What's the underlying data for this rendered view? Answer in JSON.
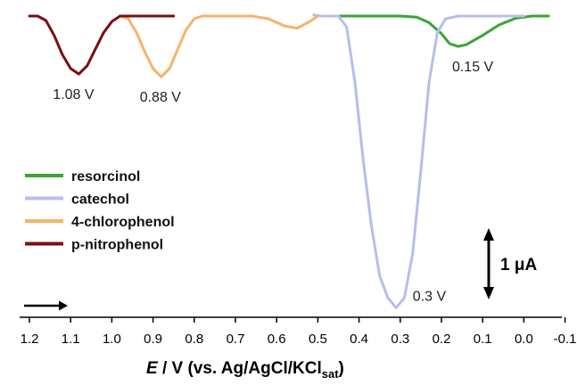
{
  "chart_data": {
    "type": "line",
    "xlabel": {
      "italic": "E",
      "main": " / V (vs. Ag/AgCl/KCl",
      "sub": "sat",
      "close": ")"
    },
    "x_reversed": true,
    "xlim": [
      1.2,
      -0.1
    ],
    "x_ticks": [
      "1.2",
      "1.1",
      "1.0",
      "0.9",
      "0.8",
      "0.7",
      "0.6",
      "0.5",
      "0.4",
      "0.3",
      "0.2",
      "0.1",
      "0.0",
      "-0.1"
    ],
    "scale_bar": {
      "value": 1,
      "unit_prefix": "1 ",
      "unit": "μA",
      "text": "1 μA"
    },
    "series": [
      {
        "name": "resorcinol",
        "color": "#3aa535",
        "points": [
          [
            0.48,
            0.0
          ],
          [
            0.3,
            0.0
          ],
          [
            0.26,
            -0.02
          ],
          [
            0.23,
            -0.12
          ],
          [
            0.2,
            -0.32
          ],
          [
            0.18,
            -0.5
          ],
          [
            0.16,
            -0.55
          ],
          [
            0.14,
            -0.52
          ],
          [
            0.1,
            -0.35
          ],
          [
            0.06,
            -0.16
          ],
          [
            0.02,
            -0.04
          ],
          [
            -0.02,
            0.0
          ],
          [
            -0.06,
            0.0
          ]
        ]
      },
      {
        "name": "catechol",
        "color": "#b8bcee",
        "points": [
          [
            0.51,
            0.02
          ],
          [
            0.49,
            0.0
          ],
          [
            0.45,
            0.0
          ],
          [
            0.43,
            -0.2
          ],
          [
            0.41,
            -1.2
          ],
          [
            0.39,
            -2.6
          ],
          [
            0.37,
            -3.8
          ],
          [
            0.35,
            -4.7
          ],
          [
            0.33,
            -5.1
          ],
          [
            0.31,
            -5.28
          ],
          [
            0.29,
            -5.1
          ],
          [
            0.27,
            -4.3
          ],
          [
            0.25,
            -2.8
          ],
          [
            0.23,
            -1.2
          ],
          [
            0.21,
            -0.3
          ],
          [
            0.19,
            -0.05
          ],
          [
            0.16,
            0.0
          ],
          [
            0.0,
            0.0
          ]
        ]
      },
      {
        "name": "4-chlorophenol",
        "color": "#f5b36a",
        "points": [
          [
            0.98,
            0.0
          ],
          [
            0.96,
            -0.05
          ],
          [
            0.94,
            -0.3
          ],
          [
            0.92,
            -0.65
          ],
          [
            0.9,
            -0.95
          ],
          [
            0.88,
            -1.1
          ],
          [
            0.86,
            -0.95
          ],
          [
            0.84,
            -0.6
          ],
          [
            0.82,
            -0.25
          ],
          [
            0.8,
            -0.05
          ],
          [
            0.78,
            0.0
          ],
          [
            0.66,
            0.0
          ],
          [
            0.62,
            -0.05
          ],
          [
            0.58,
            -0.18
          ],
          [
            0.55,
            -0.22
          ],
          [
            0.52,
            -0.1
          ],
          [
            0.5,
            0.0
          ]
        ]
      },
      {
        "name": "p-nitrophenol",
        "color": "#7a0e12",
        "points": [
          [
            1.2,
            0.0
          ],
          [
            1.18,
            0.0
          ],
          [
            1.16,
            -0.08
          ],
          [
            1.14,
            -0.35
          ],
          [
            1.12,
            -0.7
          ],
          [
            1.1,
            -0.95
          ],
          [
            1.08,
            -1.05
          ],
          [
            1.06,
            -0.9
          ],
          [
            1.04,
            -0.6
          ],
          [
            1.02,
            -0.3
          ],
          [
            1.0,
            -0.1
          ],
          [
            0.98,
            0.0
          ],
          [
            0.85,
            0.0
          ]
        ]
      }
    ],
    "annotations": [
      {
        "text": "1.08 V",
        "x": 1.08,
        "y": -1.05
      },
      {
        "text": "0.88 V",
        "x": 0.88,
        "y": -1.1
      },
      {
        "text": "0.15 V",
        "x": 0.15,
        "y": -0.55
      },
      {
        "text": "0.3 V",
        "x": 0.3,
        "y": -5.28
      }
    ],
    "scan_direction": "right"
  }
}
